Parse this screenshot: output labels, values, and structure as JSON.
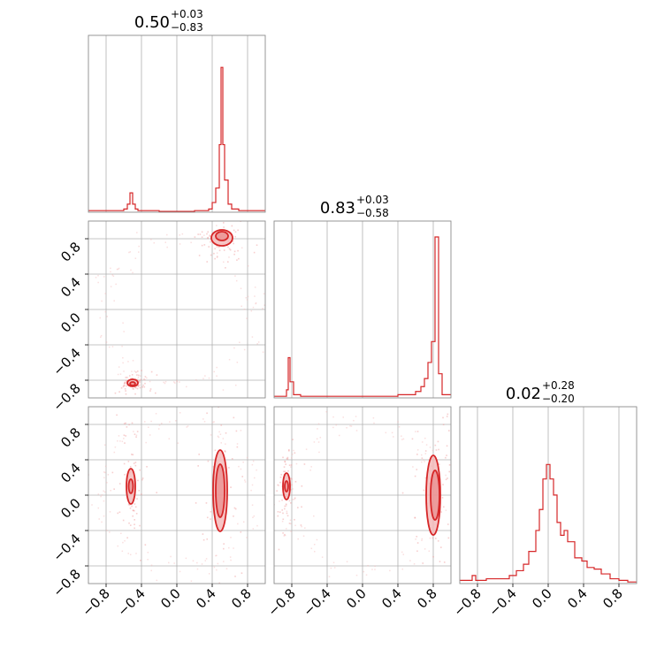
{
  "chart_data": {
    "type": "corner",
    "color": "#d62728",
    "fill_color": "#f4b6b6",
    "grid": true,
    "parameters": [
      {
        "title_value": "0.50",
        "err_plus": "+0.03",
        "err_minus": "−0.83"
      },
      {
        "title_value": "0.83",
        "err_plus": "+0.03",
        "err_minus": "−0.58"
      },
      {
        "title_value": "0.02",
        "err_plus": "+0.28",
        "err_minus": "−0.20"
      }
    ],
    "axis_range": [
      -1.0,
      1.0
    ],
    "tick_values": [
      -0.8,
      -0.4,
      0.0,
      0.4,
      0.8
    ],
    "tick_labels": [
      "−0.8",
      "−0.4",
      "0.0",
      "0.4",
      "0.8"
    ],
    "histograms": [
      {
        "bins": [
          [
            -1.0,
            0.01
          ],
          [
            -0.8,
            0.01
          ],
          [
            -0.6,
            0.02
          ],
          [
            -0.56,
            0.05
          ],
          [
            -0.53,
            0.12
          ],
          [
            -0.5,
            0.05
          ],
          [
            -0.47,
            0.02
          ],
          [
            -0.44,
            0.01
          ],
          [
            -0.2,
            0.005
          ],
          [
            0.2,
            0.01
          ],
          [
            0.36,
            0.02
          ],
          [
            0.4,
            0.06
          ],
          [
            0.44,
            0.15
          ],
          [
            0.48,
            0.42
          ],
          [
            0.5,
            0.9
          ],
          [
            0.52,
            0.42
          ],
          [
            0.54,
            0.2
          ],
          [
            0.58,
            0.05
          ],
          [
            0.62,
            0.02
          ],
          [
            0.7,
            0.01
          ],
          [
            0.9,
            0.01
          ]
        ],
        "ymax": 1.0
      },
      {
        "bins": [
          [
            -1.0,
            0.01
          ],
          [
            -0.9,
            0.01
          ],
          [
            -0.86,
            0.05
          ],
          [
            -0.84,
            0.25
          ],
          [
            -0.82,
            0.1
          ],
          [
            -0.78,
            0.02
          ],
          [
            -0.7,
            0.01
          ],
          [
            0.0,
            0.01
          ],
          [
            0.4,
            0.02
          ],
          [
            0.5,
            0.02
          ],
          [
            0.6,
            0.04
          ],
          [
            0.66,
            0.07
          ],
          [
            0.7,
            0.12
          ],
          [
            0.74,
            0.22
          ],
          [
            0.78,
            0.35
          ],
          [
            0.82,
            1.0
          ],
          [
            0.86,
            0.15
          ],
          [
            0.9,
            0.02
          ]
        ],
        "ymax": 1.0
      },
      {
        "bins": [
          [
            -1.0,
            0.02
          ],
          [
            -0.86,
            0.05
          ],
          [
            -0.82,
            0.02
          ],
          [
            -0.7,
            0.03
          ],
          [
            -0.5,
            0.03
          ],
          [
            -0.44,
            0.05
          ],
          [
            -0.36,
            0.08
          ],
          [
            -0.28,
            0.12
          ],
          [
            -0.22,
            0.2
          ],
          [
            -0.14,
            0.33
          ],
          [
            -0.1,
            0.46
          ],
          [
            -0.06,
            0.65
          ],
          [
            -0.02,
            0.74
          ],
          [
            0.02,
            0.65
          ],
          [
            0.06,
            0.55
          ],
          [
            0.1,
            0.38
          ],
          [
            0.14,
            0.3
          ],
          [
            0.18,
            0.33
          ],
          [
            0.22,
            0.26
          ],
          [
            0.3,
            0.16
          ],
          [
            0.38,
            0.14
          ],
          [
            0.44,
            0.1
          ],
          [
            0.52,
            0.09
          ],
          [
            0.6,
            0.06
          ],
          [
            0.7,
            0.03
          ],
          [
            0.8,
            0.02
          ],
          [
            0.9,
            0.01
          ]
        ],
        "ymax": 1.0
      }
    ],
    "contours": [
      {
        "row": 1,
        "col": 0,
        "regions": [
          {
            "cx": 0.51,
            "cy": 0.81,
            "rx": 0.12,
            "ry": 0.09,
            "level": "outer"
          },
          {
            "cx": 0.51,
            "cy": 0.83,
            "rx": 0.07,
            "ry": 0.05,
            "level": "inner"
          },
          {
            "cx": -0.5,
            "cy": -0.83,
            "rx": 0.06,
            "ry": 0.04,
            "level": "outer"
          },
          {
            "cx": -0.5,
            "cy": -0.84,
            "rx": 0.03,
            "ry": 0.02,
            "level": "inner"
          }
        ]
      },
      {
        "row": 2,
        "col": 0,
        "regions": [
          {
            "cx": 0.49,
            "cy": 0.05,
            "rx": 0.08,
            "ry": 0.46,
            "level": "outer"
          },
          {
            "cx": 0.49,
            "cy": 0.05,
            "rx": 0.05,
            "ry": 0.3,
            "level": "inner"
          },
          {
            "cx": -0.52,
            "cy": 0.1,
            "rx": 0.05,
            "ry": 0.2,
            "level": "outer"
          },
          {
            "cx": -0.52,
            "cy": 0.1,
            "rx": 0.025,
            "ry": 0.08,
            "level": "inner"
          }
        ]
      },
      {
        "row": 2,
        "col": 1,
        "regions": [
          {
            "cx": 0.8,
            "cy": 0.0,
            "rx": 0.08,
            "ry": 0.45,
            "level": "outer"
          },
          {
            "cx": 0.82,
            "cy": 0.0,
            "rx": 0.05,
            "ry": 0.28,
            "level": "inner"
          },
          {
            "cx": -0.86,
            "cy": 0.1,
            "rx": 0.04,
            "ry": 0.15,
            "level": "outer"
          },
          {
            "cx": -0.86,
            "cy": 0.1,
            "rx": 0.02,
            "ry": 0.06,
            "level": "inner"
          }
        ]
      }
    ]
  }
}
